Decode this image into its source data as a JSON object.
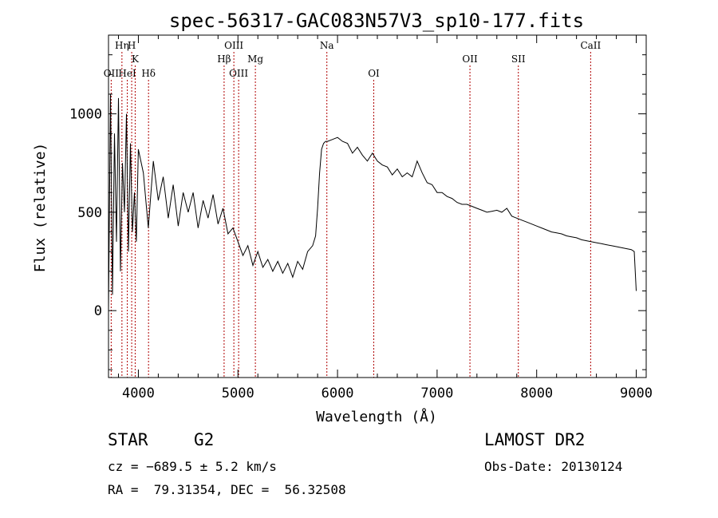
{
  "chart_data": {
    "type": "line",
    "title": "spec-56317-GAC083N57V3_sp10-177.fits",
    "xlabel": "Wavelength (Å)",
    "ylabel": "Flux (relative)",
    "xlim": [
      3700,
      9100
    ],
    "ylim": [
      -340,
      1400
    ],
    "xticks": [
      4000,
      5000,
      6000,
      7000,
      8000,
      9000
    ],
    "yticks": [
      0,
      500,
      1000
    ],
    "grid": false,
    "series": [
      {
        "x": [
          3700,
          3720,
          3740,
          3760,
          3780,
          3800,
          3820,
          3840,
          3860,
          3880,
          3900,
          3920,
          3940,
          3960,
          3980,
          4000,
          4050,
          4100,
          4150,
          4200,
          4250,
          4300,
          4350,
          4400,
          4450,
          4500,
          4550,
          4600,
          4650,
          4700,
          4750,
          4800,
          4850,
          4900,
          4950,
          5000,
          5050,
          5100,
          5150,
          5200,
          5250,
          5300,
          5350,
          5400,
          5450,
          5500,
          5550,
          5600,
          5650,
          5700,
          5750,
          5780,
          5800,
          5820,
          5840,
          5860,
          5880,
          5900,
          5950,
          6000,
          6050,
          6100,
          6150,
          6200,
          6250,
          6300,
          6350,
          6400,
          6450,
          6500,
          6550,
          6600,
          6650,
          6700,
          6750,
          6800,
          6850,
          6900,
          6950,
          7000,
          7050,
          7100,
          7150,
          7200,
          7250,
          7300,
          7350,
          7400,
          7450,
          7500,
          7550,
          7600,
          7650,
          7700,
          7750,
          7800,
          7850,
          7900,
          7950,
          8000,
          8050,
          8100,
          8150,
          8200,
          8250,
          8300,
          8350,
          8400,
          8450,
          8500,
          8550,
          8600,
          8650,
          8700,
          8750,
          8800,
          8850,
          8900,
          8950,
          8980,
          9000
        ],
        "y": [
          0,
          1100,
          80,
          900,
          350,
          1080,
          200,
          750,
          500,
          1000,
          300,
          850,
          400,
          600,
          350,
          820,
          700,
          420,
          760,
          560,
          680,
          470,
          640,
          430,
          600,
          500,
          600,
          420,
          560,
          470,
          590,
          440,
          520,
          390,
          420,
          350,
          280,
          330,
          230,
          300,
          220,
          260,
          200,
          250,
          190,
          240,
          170,
          250,
          210,
          300,
          330,
          380,
          520,
          700,
          820,
          850,
          860,
          860,
          870,
          880,
          860,
          850,
          800,
          830,
          790,
          760,
          800,
          760,
          740,
          730,
          690,
          720,
          680,
          700,
          680,
          760,
          700,
          650,
          640,
          600,
          600,
          580,
          570,
          550,
          540,
          540,
          530,
          520,
          510,
          500,
          505,
          510,
          500,
          520,
          480,
          470,
          460,
          450,
          440,
          430,
          420,
          410,
          400,
          395,
          390,
          380,
          375,
          370,
          360,
          355,
          350,
          345,
          340,
          335,
          330,
          325,
          320,
          315,
          310,
          300,
          100
        ]
      }
    ],
    "line_markers": [
      {
        "label": "OII",
        "x": 3727,
        "row": 3
      },
      {
        "label": "Hη",
        "x": 3835,
        "row": 1
      },
      {
        "label": "HeI",
        "x": 3889,
        "row": 3
      },
      {
        "label": "H",
        "x": 3933,
        "row": 1
      },
      {
        "label": "K",
        "x": 3968,
        "row": 2
      },
      {
        "label": "Hδ",
        "x": 4102,
        "row": 3
      },
      {
        "label": "Hβ",
        "x": 4861,
        "row": 2
      },
      {
        "label": "OIII",
        "x": 4959,
        "row": 1
      },
      {
        "label": "OIII",
        "x": 5007,
        "row": 3
      },
      {
        "label": "Mg",
        "x": 5175,
        "row": 2
      },
      {
        "label": "Na",
        "x": 5893,
        "row": 1
      },
      {
        "label": "OI",
        "x": 6364,
        "row": 3
      },
      {
        "label": "OII",
        "x": 7330,
        "row": 2
      },
      {
        "label": "SII",
        "x": 7816,
        "row": 2
      },
      {
        "label": "CaII",
        "x": 8542,
        "row": 1
      }
    ],
    "line_color": "#000000",
    "marker_color": "#b00000"
  },
  "info": {
    "class": "STAR",
    "subclass": "G2",
    "survey": "LAMOST DR2",
    "cz": "cz = −689.5 ± 5.2 km/s",
    "obs_date": "Obs-Date: 20130124",
    "coords": "RA =  79.31354, DEC =  56.32508"
  }
}
